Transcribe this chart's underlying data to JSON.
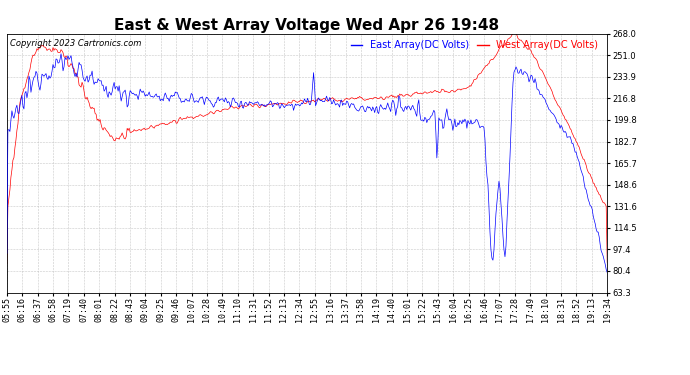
{
  "title": "East & West Array Voltage Wed Apr 26 19:48",
  "copyright": "Copyright 2023 Cartronics.com",
  "legend_east": "East Array(DC Volts)",
  "legend_west": "West Array(DC Volts)",
  "east_color": "#0000ff",
  "west_color": "#ff0000",
  "background_color": "#ffffff",
  "plot_bg_color": "#ffffff",
  "grid_color": "#bbbbbb",
  "ylim_min": 63.3,
  "ylim_max": 268.0,
  "yticks": [
    63.3,
    80.4,
    97.4,
    114.5,
    131.6,
    148.6,
    165.7,
    182.7,
    199.8,
    216.8,
    233.9,
    251.0,
    268.0
  ],
  "title_fontsize": 11,
  "label_fontsize": 7,
  "tick_fontsize": 6,
  "copyright_fontsize": 6,
  "x_labels": [
    "05:55",
    "06:16",
    "06:37",
    "06:58",
    "07:19",
    "07:40",
    "08:01",
    "08:22",
    "08:43",
    "09:04",
    "09:25",
    "09:46",
    "10:07",
    "10:28",
    "10:49",
    "11:10",
    "11:31",
    "11:52",
    "12:13",
    "12:34",
    "12:55",
    "13:16",
    "13:37",
    "13:58",
    "14:19",
    "14:40",
    "15:01",
    "15:22",
    "15:43",
    "16:04",
    "16:25",
    "16:46",
    "17:07",
    "17:28",
    "17:49",
    "18:10",
    "18:31",
    "18:52",
    "19:13",
    "19:34"
  ]
}
